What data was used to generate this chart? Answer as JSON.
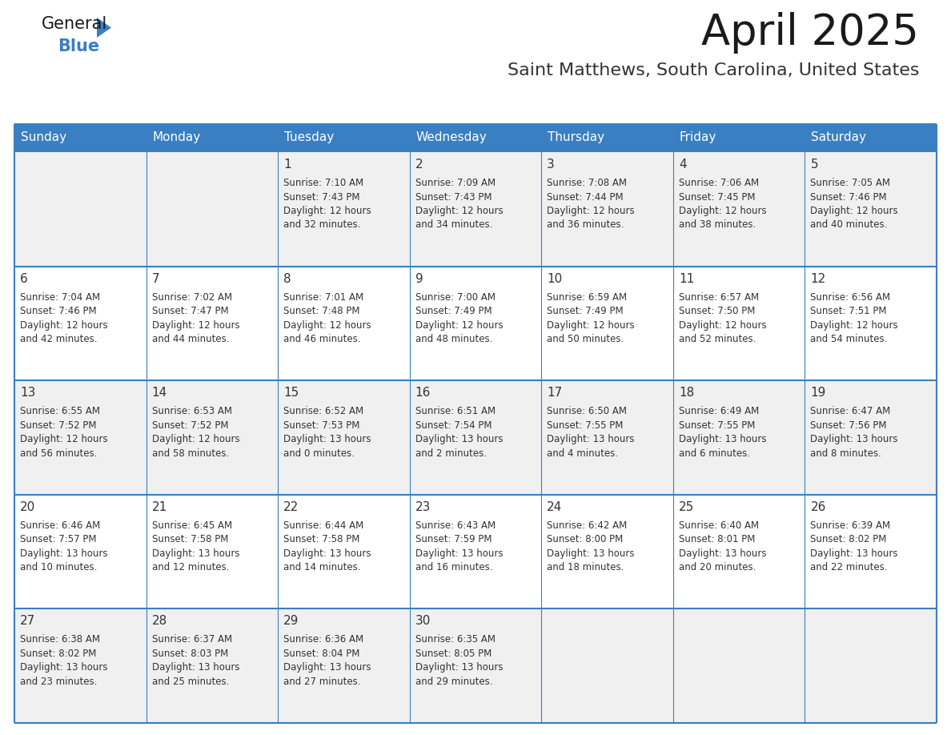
{
  "title": "April 2025",
  "subtitle": "Saint Matthews, South Carolina, United States",
  "header_bg": "#3A7FC1",
  "header_text_color": "#FFFFFF",
  "cell_bg_even": "#F0F0F0",
  "cell_bg_odd": "#FFFFFF",
  "cell_text_color": "#333333",
  "border_color": "#3A7FC1",
  "days_of_week": [
    "Sunday",
    "Monday",
    "Tuesday",
    "Wednesday",
    "Thursday",
    "Friday",
    "Saturday"
  ],
  "logo_general_color": "#1a1a1a",
  "logo_blue_color": "#3A7FC1",
  "weeks": [
    [
      {
        "day": "",
        "sunrise": "",
        "sunset": "",
        "daylight1": "",
        "daylight2": ""
      },
      {
        "day": "",
        "sunrise": "",
        "sunset": "",
        "daylight1": "",
        "daylight2": ""
      },
      {
        "day": "1",
        "sunrise": "Sunrise: 7:10 AM",
        "sunset": "Sunset: 7:43 PM",
        "daylight1": "Daylight: 12 hours",
        "daylight2": "and 32 minutes."
      },
      {
        "day": "2",
        "sunrise": "Sunrise: 7:09 AM",
        "sunset": "Sunset: 7:43 PM",
        "daylight1": "Daylight: 12 hours",
        "daylight2": "and 34 minutes."
      },
      {
        "day": "3",
        "sunrise": "Sunrise: 7:08 AM",
        "sunset": "Sunset: 7:44 PM",
        "daylight1": "Daylight: 12 hours",
        "daylight2": "and 36 minutes."
      },
      {
        "day": "4",
        "sunrise": "Sunrise: 7:06 AM",
        "sunset": "Sunset: 7:45 PM",
        "daylight1": "Daylight: 12 hours",
        "daylight2": "and 38 minutes."
      },
      {
        "day": "5",
        "sunrise": "Sunrise: 7:05 AM",
        "sunset": "Sunset: 7:46 PM",
        "daylight1": "Daylight: 12 hours",
        "daylight2": "and 40 minutes."
      }
    ],
    [
      {
        "day": "6",
        "sunrise": "Sunrise: 7:04 AM",
        "sunset": "Sunset: 7:46 PM",
        "daylight1": "Daylight: 12 hours",
        "daylight2": "and 42 minutes."
      },
      {
        "day": "7",
        "sunrise": "Sunrise: 7:02 AM",
        "sunset": "Sunset: 7:47 PM",
        "daylight1": "Daylight: 12 hours",
        "daylight2": "and 44 minutes."
      },
      {
        "day": "8",
        "sunrise": "Sunrise: 7:01 AM",
        "sunset": "Sunset: 7:48 PM",
        "daylight1": "Daylight: 12 hours",
        "daylight2": "and 46 minutes."
      },
      {
        "day": "9",
        "sunrise": "Sunrise: 7:00 AM",
        "sunset": "Sunset: 7:49 PM",
        "daylight1": "Daylight: 12 hours",
        "daylight2": "and 48 minutes."
      },
      {
        "day": "10",
        "sunrise": "Sunrise: 6:59 AM",
        "sunset": "Sunset: 7:49 PM",
        "daylight1": "Daylight: 12 hours",
        "daylight2": "and 50 minutes."
      },
      {
        "day": "11",
        "sunrise": "Sunrise: 6:57 AM",
        "sunset": "Sunset: 7:50 PM",
        "daylight1": "Daylight: 12 hours",
        "daylight2": "and 52 minutes."
      },
      {
        "day": "12",
        "sunrise": "Sunrise: 6:56 AM",
        "sunset": "Sunset: 7:51 PM",
        "daylight1": "Daylight: 12 hours",
        "daylight2": "and 54 minutes."
      }
    ],
    [
      {
        "day": "13",
        "sunrise": "Sunrise: 6:55 AM",
        "sunset": "Sunset: 7:52 PM",
        "daylight1": "Daylight: 12 hours",
        "daylight2": "and 56 minutes."
      },
      {
        "day": "14",
        "sunrise": "Sunrise: 6:53 AM",
        "sunset": "Sunset: 7:52 PM",
        "daylight1": "Daylight: 12 hours",
        "daylight2": "and 58 minutes."
      },
      {
        "day": "15",
        "sunrise": "Sunrise: 6:52 AM",
        "sunset": "Sunset: 7:53 PM",
        "daylight1": "Daylight: 13 hours",
        "daylight2": "and 0 minutes."
      },
      {
        "day": "16",
        "sunrise": "Sunrise: 6:51 AM",
        "sunset": "Sunset: 7:54 PM",
        "daylight1": "Daylight: 13 hours",
        "daylight2": "and 2 minutes."
      },
      {
        "day": "17",
        "sunrise": "Sunrise: 6:50 AM",
        "sunset": "Sunset: 7:55 PM",
        "daylight1": "Daylight: 13 hours",
        "daylight2": "and 4 minutes."
      },
      {
        "day": "18",
        "sunrise": "Sunrise: 6:49 AM",
        "sunset": "Sunset: 7:55 PM",
        "daylight1": "Daylight: 13 hours",
        "daylight2": "and 6 minutes."
      },
      {
        "day": "19",
        "sunrise": "Sunrise: 6:47 AM",
        "sunset": "Sunset: 7:56 PM",
        "daylight1": "Daylight: 13 hours",
        "daylight2": "and 8 minutes."
      }
    ],
    [
      {
        "day": "20",
        "sunrise": "Sunrise: 6:46 AM",
        "sunset": "Sunset: 7:57 PM",
        "daylight1": "Daylight: 13 hours",
        "daylight2": "and 10 minutes."
      },
      {
        "day": "21",
        "sunrise": "Sunrise: 6:45 AM",
        "sunset": "Sunset: 7:58 PM",
        "daylight1": "Daylight: 13 hours",
        "daylight2": "and 12 minutes."
      },
      {
        "day": "22",
        "sunrise": "Sunrise: 6:44 AM",
        "sunset": "Sunset: 7:58 PM",
        "daylight1": "Daylight: 13 hours",
        "daylight2": "and 14 minutes."
      },
      {
        "day": "23",
        "sunrise": "Sunrise: 6:43 AM",
        "sunset": "Sunset: 7:59 PM",
        "daylight1": "Daylight: 13 hours",
        "daylight2": "and 16 minutes."
      },
      {
        "day": "24",
        "sunrise": "Sunrise: 6:42 AM",
        "sunset": "Sunset: 8:00 PM",
        "daylight1": "Daylight: 13 hours",
        "daylight2": "and 18 minutes."
      },
      {
        "day": "25",
        "sunrise": "Sunrise: 6:40 AM",
        "sunset": "Sunset: 8:01 PM",
        "daylight1": "Daylight: 13 hours",
        "daylight2": "and 20 minutes."
      },
      {
        "day": "26",
        "sunrise": "Sunrise: 6:39 AM",
        "sunset": "Sunset: 8:02 PM",
        "daylight1": "Daylight: 13 hours",
        "daylight2": "and 22 minutes."
      }
    ],
    [
      {
        "day": "27",
        "sunrise": "Sunrise: 6:38 AM",
        "sunset": "Sunset: 8:02 PM",
        "daylight1": "Daylight: 13 hours",
        "daylight2": "and 23 minutes."
      },
      {
        "day": "28",
        "sunrise": "Sunrise: 6:37 AM",
        "sunset": "Sunset: 8:03 PM",
        "daylight1": "Daylight: 13 hours",
        "daylight2": "and 25 minutes."
      },
      {
        "day": "29",
        "sunrise": "Sunrise: 6:36 AM",
        "sunset": "Sunset: 8:04 PM",
        "daylight1": "Daylight: 13 hours",
        "daylight2": "and 27 minutes."
      },
      {
        "day": "30",
        "sunrise": "Sunrise: 6:35 AM",
        "sunset": "Sunset: 8:05 PM",
        "daylight1": "Daylight: 13 hours",
        "daylight2": "and 29 minutes."
      },
      {
        "day": "",
        "sunrise": "",
        "sunset": "",
        "daylight1": "",
        "daylight2": ""
      },
      {
        "day": "",
        "sunrise": "",
        "sunset": "",
        "daylight1": "",
        "daylight2": ""
      },
      {
        "day": "",
        "sunrise": "",
        "sunset": "",
        "daylight1": "",
        "daylight2": ""
      }
    ]
  ]
}
